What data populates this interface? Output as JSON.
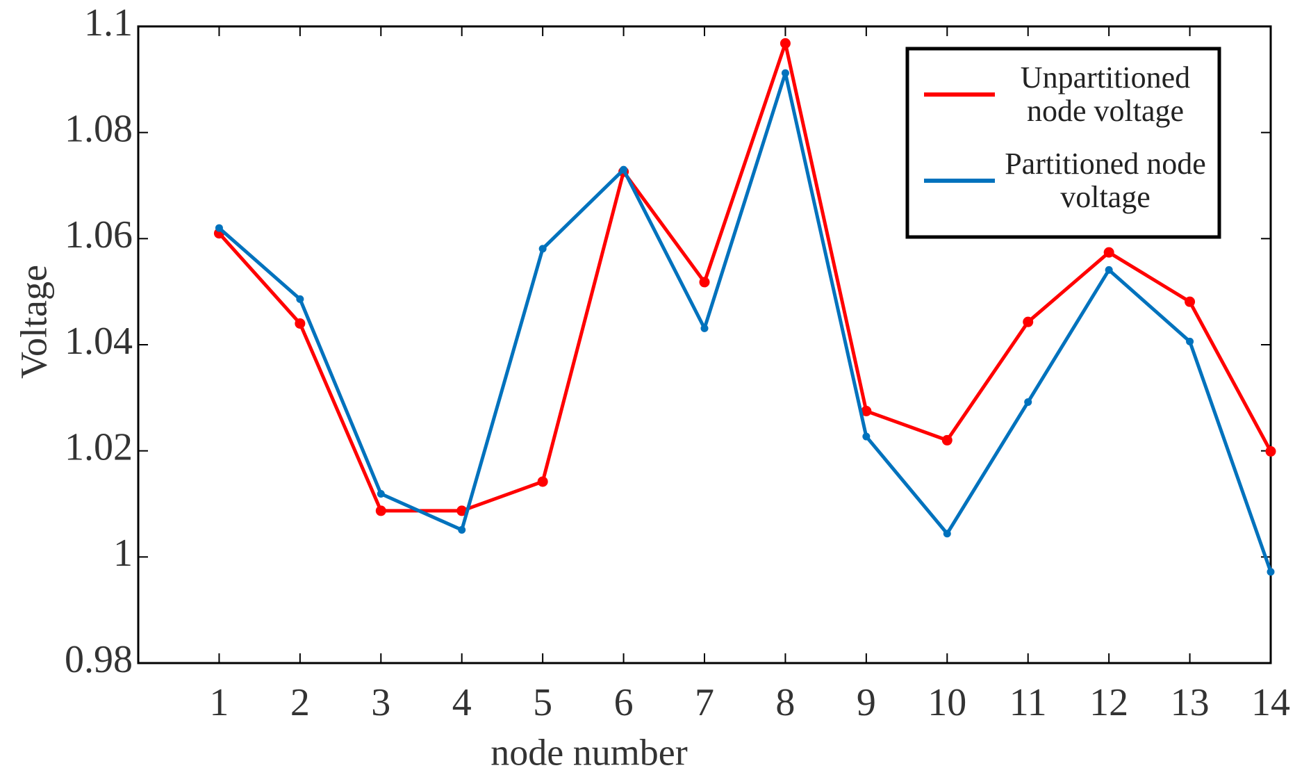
{
  "chart_data": {
    "type": "line",
    "x_label": "node number",
    "y_label": "Voltage",
    "x": [
      1,
      2,
      3,
      4,
      5,
      6,
      7,
      8,
      9,
      10,
      11,
      12,
      13,
      14
    ],
    "series": [
      {
        "name": "Unpartitioned node voltage",
        "color": "#ff0000",
        "values": [
          1.061,
          1.044,
          1.0087,
          1.0087,
          1.0142,
          1.0726,
          1.0518,
          1.0968,
          1.0275,
          1.022,
          1.0443,
          1.0574,
          1.0481,
          1.0199
        ]
      },
      {
        "name": "Partitioned node voltage",
        "color": "#0072bd",
        "values": [
          1.062,
          1.0486,
          1.0119,
          1.0051,
          1.0581,
          1.073,
          1.0431,
          1.0912,
          1.0227,
          1.0044,
          1.0292,
          1.0541,
          1.0406,
          0.9972
        ]
      }
    ],
    "xlim": [
      0,
      14
    ],
    "xticks": [
      1,
      2,
      3,
      4,
      5,
      6,
      7,
      8,
      9,
      10,
      11,
      12,
      13,
      14
    ],
    "ylim": [
      0.98,
      1.1
    ],
    "yticks": [
      0.98,
      1,
      1.02,
      1.04,
      1.06,
      1.08,
      1.1
    ],
    "grid": false,
    "legend": "upper right"
  }
}
